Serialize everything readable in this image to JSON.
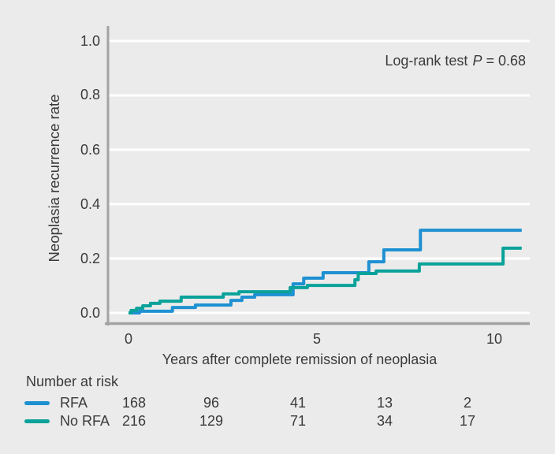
{
  "colors": {
    "background": "#ebebeb",
    "gridline": "#ffffff",
    "axis": "#a3a3a3",
    "text": "#3a3a3a",
    "rfa_blue": "#1e91d2",
    "no_rfa_teal": "#0aa29a"
  },
  "chart_data": {
    "type": "line",
    "subtype": "kaplan-meier-step",
    "title": "",
    "xlabel": "Years after complete remission of neoplasia",
    "ylabel": "Neoplasia recurrence rate",
    "annotation": {
      "prefix": "Log-rank test",
      "stat": "P",
      "value": "= 0.68"
    },
    "xlim": [
      0,
      10.97
    ],
    "ylim": [
      0,
      1.0
    ],
    "grid": "horizontal-white-lines",
    "legend_position": "below-left-with-risk-table",
    "x_ticks": [
      {
        "value": 0,
        "label": "0"
      },
      {
        "value": 5,
        "label": "5"
      },
      {
        "value": 10,
        "label": "10"
      }
    ],
    "y_ticks": [
      {
        "value": 1.0,
        "label": "1.0"
      },
      {
        "value": 0.8,
        "label": "0.8"
      },
      {
        "value": 0.6,
        "label": "0.6"
      },
      {
        "value": 0.4,
        "label": "0.4"
      },
      {
        "value": 0.2,
        "label": "0.2"
      },
      {
        "value": 0.0,
        "label": "0.0"
      }
    ],
    "end_year": 10.75,
    "series": [
      {
        "name": "RFA",
        "color": "#1e91d2",
        "points": [
          [
            0,
            0
          ],
          [
            0.3,
            0.006
          ],
          [
            1.2,
            0.02
          ],
          [
            1.83,
            0.029
          ],
          [
            2.8,
            0.046
          ],
          [
            3.1,
            0.058
          ],
          [
            3.45,
            0.067
          ],
          [
            4.5,
            0.107
          ],
          [
            4.79,
            0.128
          ],
          [
            5.32,
            0.148
          ],
          [
            6.57,
            0.188
          ],
          [
            6.98,
            0.232
          ],
          [
            7.98,
            0.304
          ]
        ]
      },
      {
        "name": "No RFA",
        "color": "#0aa29a",
        "points": [
          [
            0,
            0
          ],
          [
            0.07,
            0.009
          ],
          [
            0.22,
            0.017
          ],
          [
            0.39,
            0.026
          ],
          [
            0.6,
            0.035
          ],
          [
            0.86,
            0.043
          ],
          [
            1.44,
            0.058
          ],
          [
            2.59,
            0.07
          ],
          [
            3.02,
            0.078
          ],
          [
            4.42,
            0.093
          ],
          [
            4.89,
            0.101
          ],
          [
            6.19,
            0.122
          ],
          [
            6.28,
            0.145
          ],
          [
            6.77,
            0.154
          ],
          [
            7.95,
            0.18
          ],
          [
            10.24,
            0.238
          ]
        ]
      }
    ]
  },
  "risk_table": {
    "header": "Number at risk",
    "columns_years": [
      0,
      2.5,
      5,
      7.5,
      10
    ],
    "rows": [
      {
        "label": "RFA",
        "color": "#1e91d2",
        "counts": [
          "168",
          "96",
          "41",
          "13",
          "2"
        ]
      },
      {
        "label": "No RFA",
        "color": "#0aa29a",
        "counts": [
          "216",
          "129",
          "71",
          "34",
          "17"
        ]
      }
    ]
  }
}
